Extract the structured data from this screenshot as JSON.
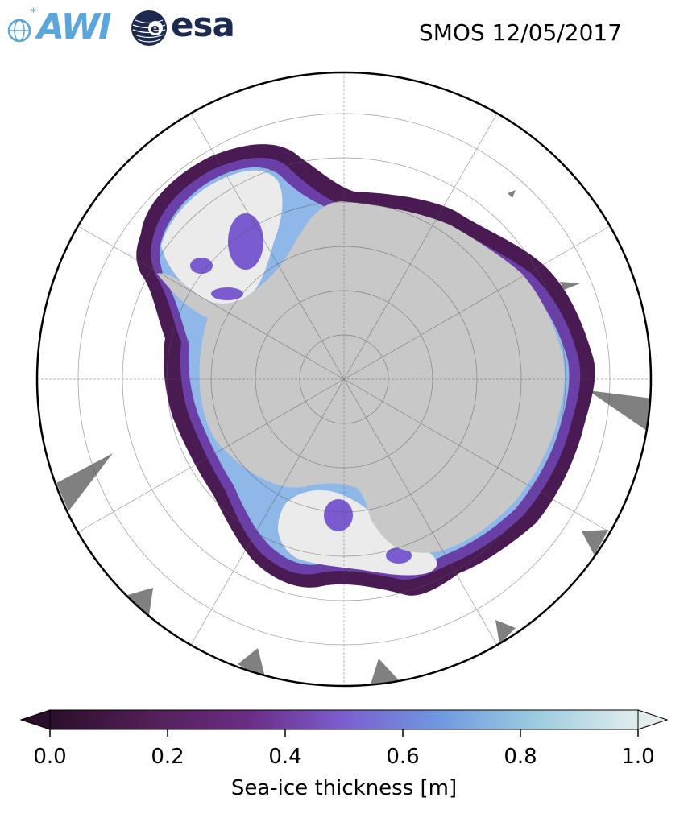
{
  "header": {
    "awi_logo_text": "AWI",
    "esa_logo_text": "esa",
    "product_date": "SMOS 12/05/2017"
  },
  "map": {
    "projection": "south-polar-stereographic",
    "land_color": "#c8c8c8",
    "missing_color": "#808080",
    "ocean_color": "#ffffff",
    "grid": true
  },
  "colorbar": {
    "label": "Sea-ice thickness [m]",
    "ticks": [
      "0.0",
      "0.2",
      "0.4",
      "0.6",
      "0.8",
      "1.0"
    ],
    "range": [
      0.0,
      1.0
    ],
    "extend": "both",
    "colors": [
      "#2a0f2a",
      "#531f57",
      "#6b2d86",
      "#7b5fcf",
      "#6f98e0",
      "#9ccde0",
      "#e3eded"
    ]
  }
}
